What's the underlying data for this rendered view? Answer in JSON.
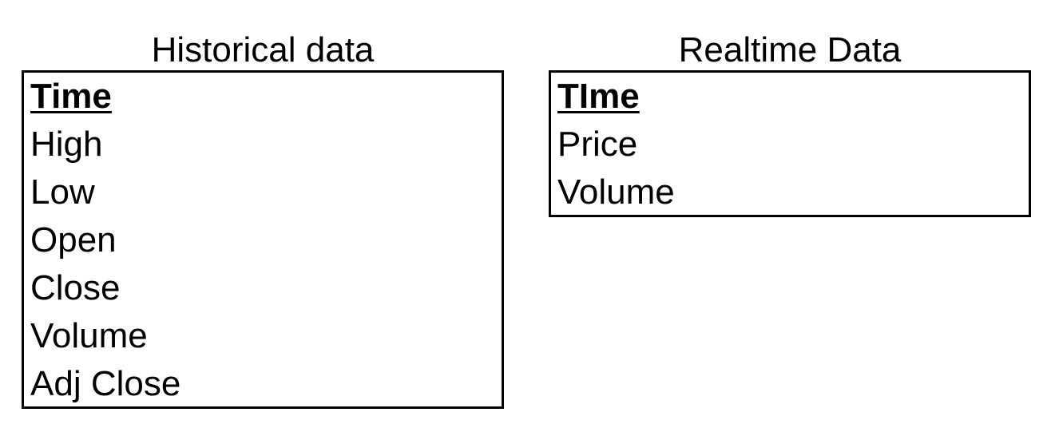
{
  "entities": [
    {
      "title": "Historical data",
      "key_field": "Time",
      "fields": [
        "High",
        "Low",
        "Open",
        "Close",
        "Volume",
        "Adj Close"
      ]
    },
    {
      "title": "Realtime Data",
      "key_field": "TIme",
      "fields": [
        "Price",
        "Volume"
      ]
    }
  ]
}
